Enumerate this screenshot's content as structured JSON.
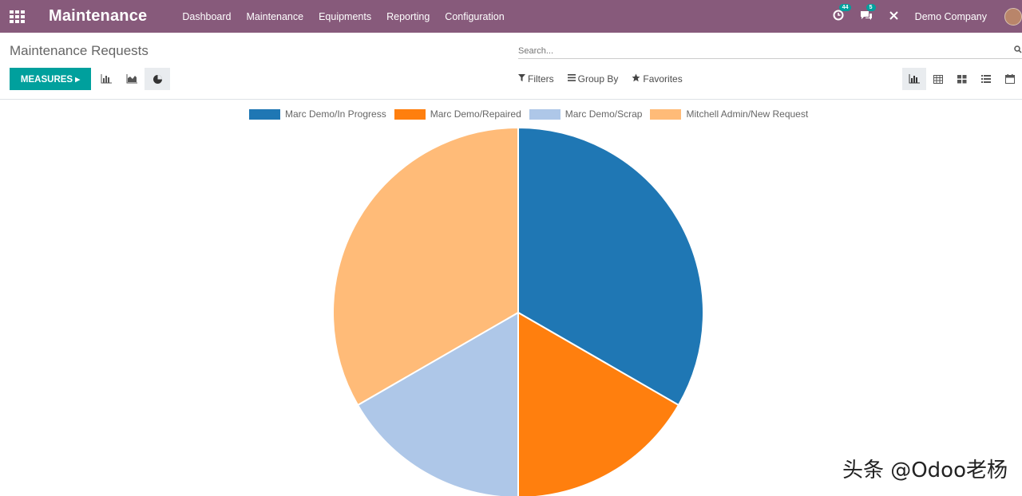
{
  "navbar": {
    "app_title": "Maintenance",
    "menu": [
      "Dashboard",
      "Maintenance",
      "Equipments",
      "Reporting",
      "Configuration"
    ],
    "activity_badge": "44",
    "messages_badge": "5",
    "company": "Demo Company"
  },
  "control_panel": {
    "breadcrumb": "Maintenance Requests",
    "search_placeholder": "Search...",
    "measures_label": "MEASURES ▸",
    "filters_label": "Filters",
    "group_by_label": "Group By",
    "favorites_label": "Favorites"
  },
  "watermark": "头条 @Odoo老杨",
  "colors": {
    "navbar": "#875a7b",
    "primary": "#00a09d"
  },
  "chart_data": {
    "type": "pie",
    "title": "",
    "series": [
      {
        "name": "Marc Demo/In Progress",
        "value": 2,
        "color": "#1f77b4"
      },
      {
        "name": "Marc Demo/Repaired",
        "value": 1,
        "color": "#ff7f0e"
      },
      {
        "name": "Marc Demo/Scrap",
        "value": 1,
        "color": "#aec7e8"
      },
      {
        "name": "Mitchell Admin/New Request",
        "value": 2,
        "color": "#ffbb78"
      }
    ],
    "legend_position": "top"
  }
}
